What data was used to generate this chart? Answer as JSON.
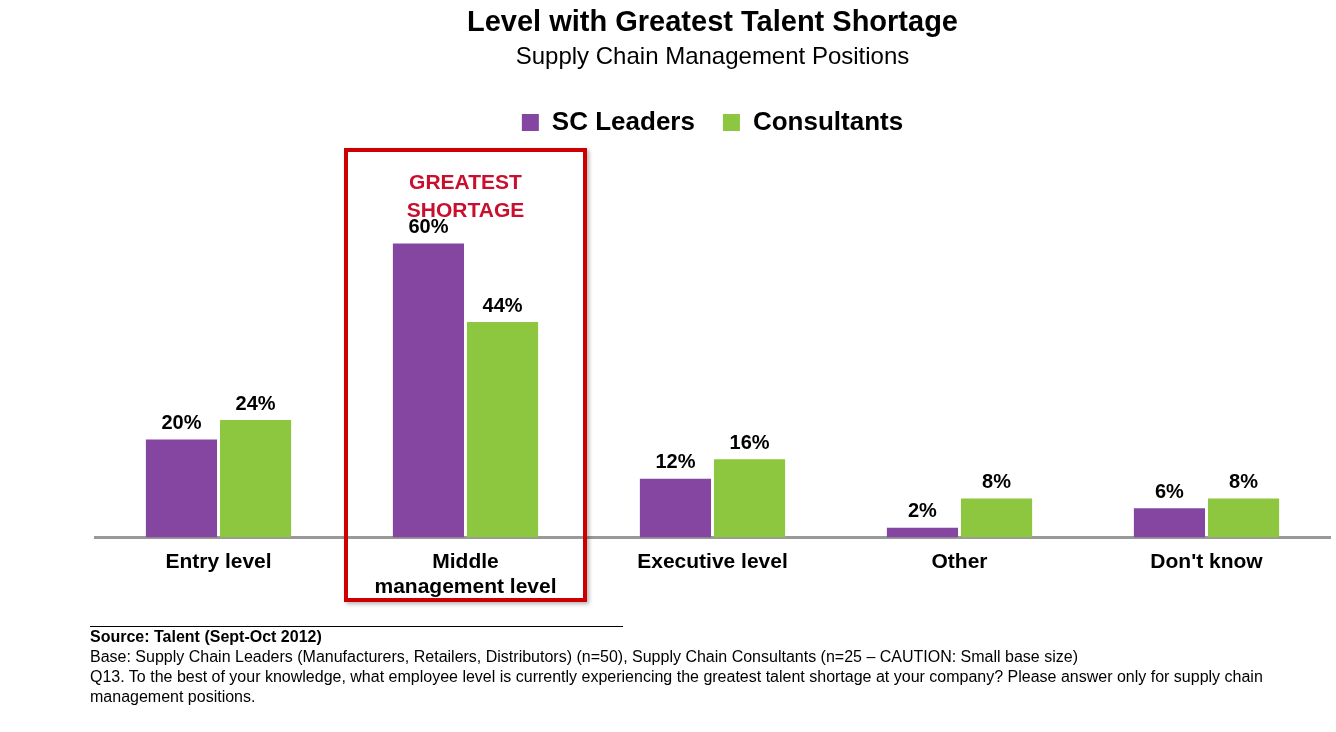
{
  "chart_data": {
    "type": "bar",
    "title": "Level with Greatest Talent Shortage",
    "subtitle": "Supply Chain Management Positions",
    "categories": [
      "Entry level",
      "Middle management level",
      "Executive level",
      "Other",
      "Don't know"
    ],
    "series": [
      {
        "name": "SC Leaders",
        "color": "#8446a0",
        "values": [
          20,
          60,
          12,
          2,
          6
        ],
        "value_labels": [
          "20%",
          "60%",
          "12%",
          "2%",
          "6%"
        ]
      },
      {
        "name": "Consultants",
        "color": "#8dc63f",
        "values": [
          24,
          44,
          16,
          8,
          8
        ],
        "value_labels": [
          "24%",
          "44%",
          "16%",
          "8%",
          "8%"
        ]
      }
    ],
    "legend": "top",
    "grid": false,
    "annotations": [
      "GREATEST SHORTAGE",
      "Source:  Talent (Sept-Oct 2012)",
      "Base:  Supply Chain Leaders (Manufacturers, Retailers, Distributors) (n=50), Supply Chain Consultants (n=25 – CAUTION: Small base size)",
      "Q13. To the best of your knowledge, what employee level is currently experiencing the greatest talent shortage at your company?  Please answer only for supply chain management positions."
    ]
  }
}
